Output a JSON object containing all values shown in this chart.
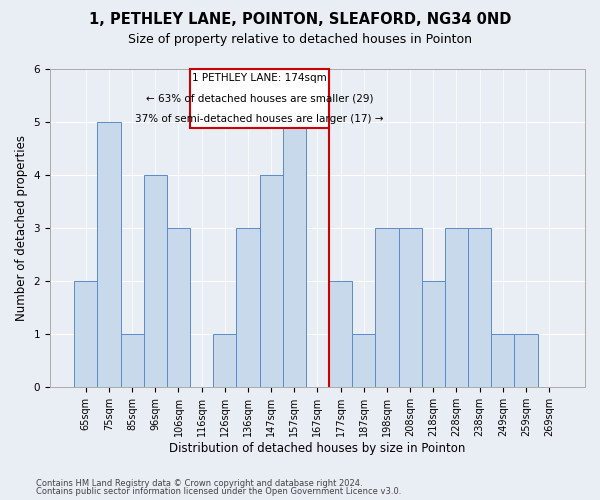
{
  "title": "1, PETHLEY LANE, POINTON, SLEAFORD, NG34 0ND",
  "subtitle": "Size of property relative to detached houses in Pointon",
  "xlabel": "Distribution of detached houses by size in Pointon",
  "ylabel": "Number of detached properties",
  "categories": [
    "65sqm",
    "75sqm",
    "85sqm",
    "96sqm",
    "106sqm",
    "116sqm",
    "126sqm",
    "136sqm",
    "147sqm",
    "157sqm",
    "167sqm",
    "177sqm",
    "187sqm",
    "198sqm",
    "208sqm",
    "218sqm",
    "228sqm",
    "238sqm",
    "249sqm",
    "259sqm",
    "269sqm"
  ],
  "values": [
    2,
    5,
    1,
    4,
    3,
    0,
    1,
    3,
    4,
    5,
    0,
    2,
    1,
    3,
    3,
    2,
    3,
    3,
    1,
    1,
    0
  ],
  "bar_color": "#c9d9ec",
  "bar_edgecolor": "#5b8bc9",
  "bar_linewidth": 0.7,
  "vline_x": 10.5,
  "vline_color": "#cc0000",
  "annotation_line1": "1 PETHLEY LANE: 174sqm",
  "annotation_line2": "← 63% of detached houses are smaller (29)",
  "annotation_line3": "37% of semi-detached houses are larger (17) →",
  "annotation_box_color": "#cc0000",
  "ylim": [
    0,
    6
  ],
  "yticks": [
    0,
    1,
    2,
    3,
    4,
    5,
    6
  ],
  "background_color": "#e8eef4",
  "footer_line1": "Contains HM Land Registry data © Crown copyright and database right 2024.",
  "footer_line2": "Contains public sector information licensed under the Open Government Licence v3.0.",
  "title_fontsize": 10.5,
  "subtitle_fontsize": 9,
  "tick_fontsize": 7,
  "axis_label_fontsize": 8.5,
  "annotation_fontsize": 7.5
}
